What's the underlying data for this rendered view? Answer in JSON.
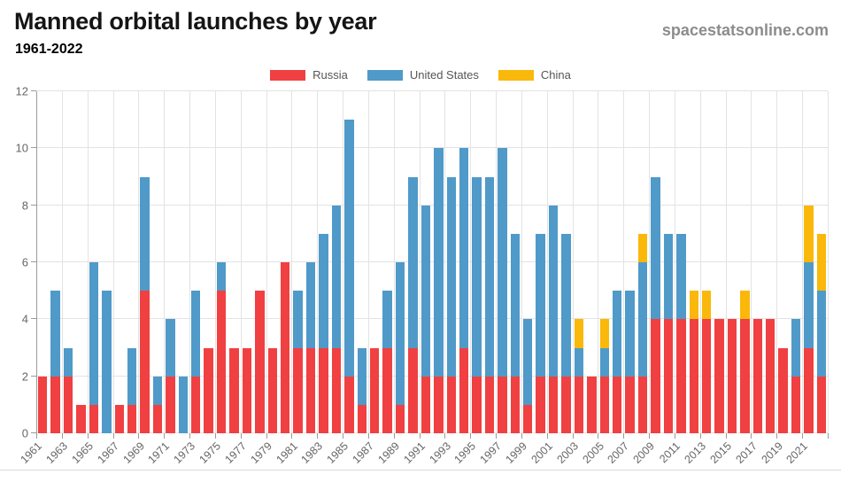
{
  "header": {
    "title": "Manned orbital launches by year",
    "subtitle": "1961-2022",
    "website": "spacestatsonline.com"
  },
  "colors": {
    "russia": "#f04041",
    "united_states": "#4f9ac9",
    "china": "#fab80a",
    "title_text": "#151515",
    "website_text": "#8c8c8c",
    "axis_text": "#666666",
    "grid_line": "#e3e3e3",
    "axis_line": "#9b9b9b"
  },
  "chart_data": {
    "type": "bar",
    "stacked": true,
    "title": "Manned orbital launches by year",
    "subtitle": "1961-2022",
    "xlabel": "",
    "ylabel": "",
    "ylim": [
      0,
      12
    ],
    "yticks": [
      0,
      2,
      4,
      6,
      8,
      10,
      12
    ],
    "grid": true,
    "legend_position": "top",
    "categories": [
      "1961",
      "1962",
      "1963",
      "1964",
      "1965",
      "1966",
      "1967",
      "1968",
      "1969",
      "1970",
      "1971",
      "1972",
      "1973",
      "1974",
      "1975",
      "1976",
      "1977",
      "1978",
      "1979",
      "1980",
      "1981",
      "1982",
      "1983",
      "1984",
      "1985",
      "1986",
      "1987",
      "1988",
      "1989",
      "1990",
      "1991",
      "1992",
      "1993",
      "1994",
      "1995",
      "1996",
      "1997",
      "1998",
      "1999",
      "2000",
      "2001",
      "2002",
      "2003",
      "2004",
      "2005",
      "2006",
      "2007",
      "2008",
      "2009",
      "2010",
      "2011",
      "2012",
      "2013",
      "2014",
      "2015",
      "2016",
      "2017",
      "2018",
      "2019",
      "2020",
      "2021",
      "2022"
    ],
    "x_tick_labels": [
      "1961",
      "1963",
      "1965",
      "1967",
      "1969",
      "1971",
      "1973",
      "1975",
      "1977",
      "1979",
      "1981",
      "1983",
      "1985",
      "1987",
      "1989",
      "1991",
      "1993",
      "1995",
      "1997",
      "1999",
      "2001",
      "2003",
      "2005",
      "2007",
      "2009",
      "2011",
      "2013",
      "2015",
      "2017",
      "2019",
      "2021"
    ],
    "series": [
      {
        "name": "Russia",
        "color": "#f04041",
        "values": [
          2,
          2,
          2,
          1,
          1,
          0,
          1,
          1,
          5,
          1,
          2,
          0,
          2,
          3,
          5,
          3,
          3,
          5,
          3,
          6,
          3,
          3,
          3,
          3,
          2,
          1,
          3,
          3,
          1,
          3,
          2,
          2,
          2,
          3,
          2,
          2,
          2,
          2,
          1,
          2,
          2,
          2,
          2,
          2,
          2,
          2,
          2,
          2,
          4,
          4,
          4,
          4,
          4,
          4,
          4,
          4,
          4,
          4,
          3,
          2,
          3,
          2
        ]
      },
      {
        "name": "United States",
        "color": "#4f9ac9",
        "values": [
          0,
          3,
          1,
          0,
          5,
          5,
          0,
          2,
          4,
          1,
          2,
          2,
          3,
          0,
          1,
          0,
          0,
          0,
          0,
          0,
          2,
          3,
          4,
          5,
          9,
          2,
          0,
          2,
          5,
          6,
          6,
          8,
          7,
          7,
          7,
          7,
          8,
          5,
          3,
          5,
          6,
          5,
          1,
          0,
          1,
          3,
          3,
          4,
          5,
          3,
          3,
          0,
          0,
          0,
          0,
          0,
          0,
          0,
          0,
          2,
          3,
          3
        ]
      },
      {
        "name": "China",
        "color": "#fab80a",
        "values": [
          0,
          0,
          0,
          0,
          0,
          0,
          0,
          0,
          0,
          0,
          0,
          0,
          0,
          0,
          0,
          0,
          0,
          0,
          0,
          0,
          0,
          0,
          0,
          0,
          0,
          0,
          0,
          0,
          0,
          0,
          0,
          0,
          0,
          0,
          0,
          0,
          0,
          0,
          0,
          0,
          0,
          0,
          1,
          0,
          1,
          0,
          0,
          1,
          0,
          0,
          0,
          1,
          1,
          0,
          0,
          1,
          0,
          0,
          0,
          0,
          2,
          2
        ]
      }
    ]
  }
}
